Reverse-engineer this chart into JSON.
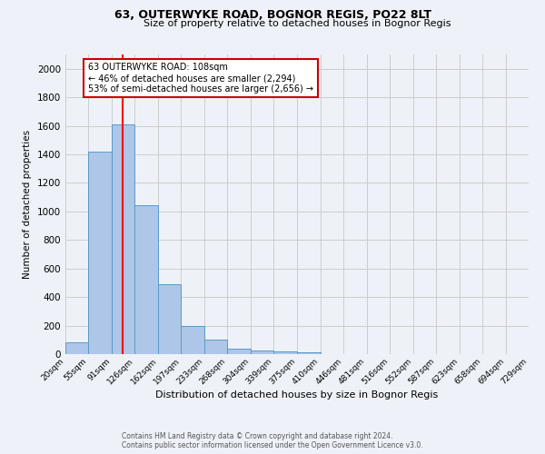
{
  "title": "63, OUTERWYKE ROAD, BOGNOR REGIS, PO22 8LT",
  "subtitle": "Size of property relative to detached houses in Bognor Regis",
  "xlabel": "Distribution of detached houses by size in Bognor Regis",
  "ylabel": "Number of detached properties",
  "footnote1": "Contains HM Land Registry data © Crown copyright and database right 2024.",
  "footnote2": "Contains public sector information licensed under the Open Government Licence v3.0.",
  "bin_labels": [
    "20sqm",
    "55sqm",
    "91sqm",
    "126sqm",
    "162sqm",
    "197sqm",
    "233sqm",
    "268sqm",
    "304sqm",
    "339sqm",
    "375sqm",
    "410sqm",
    "446sqm",
    "481sqm",
    "516sqm",
    "552sqm",
    "587sqm",
    "623sqm",
    "658sqm",
    "694sqm",
    "729sqm"
  ],
  "bin_edges": [
    20,
    55,
    91,
    126,
    162,
    197,
    233,
    268,
    304,
    339,
    375,
    410,
    446,
    481,
    516,
    552,
    587,
    623,
    658,
    694,
    729
  ],
  "bar_values": [
    80,
    1420,
    1610,
    1045,
    490,
    200,
    100,
    38,
    27,
    20,
    15,
    0,
    0,
    0,
    0,
    0,
    0,
    0,
    0,
    0
  ],
  "bar_color": "#aec6e8",
  "bar_edge_color": "#5a9ac8",
  "red_line_x": 108,
  "ylim": [
    0,
    2100
  ],
  "yticks": [
    0,
    200,
    400,
    600,
    800,
    1000,
    1200,
    1400,
    1600,
    1800,
    2000
  ],
  "annotation_text": "63 OUTERWYKE ROAD: 108sqm\n← 46% of detached houses are smaller (2,294)\n53% of semi-detached houses are larger (2,656) →",
  "annotation_box_color": "#ffffff",
  "annotation_box_edge": "#cc0000",
  "grid_color": "#cccccc",
  "background_color": "#eef2f8"
}
